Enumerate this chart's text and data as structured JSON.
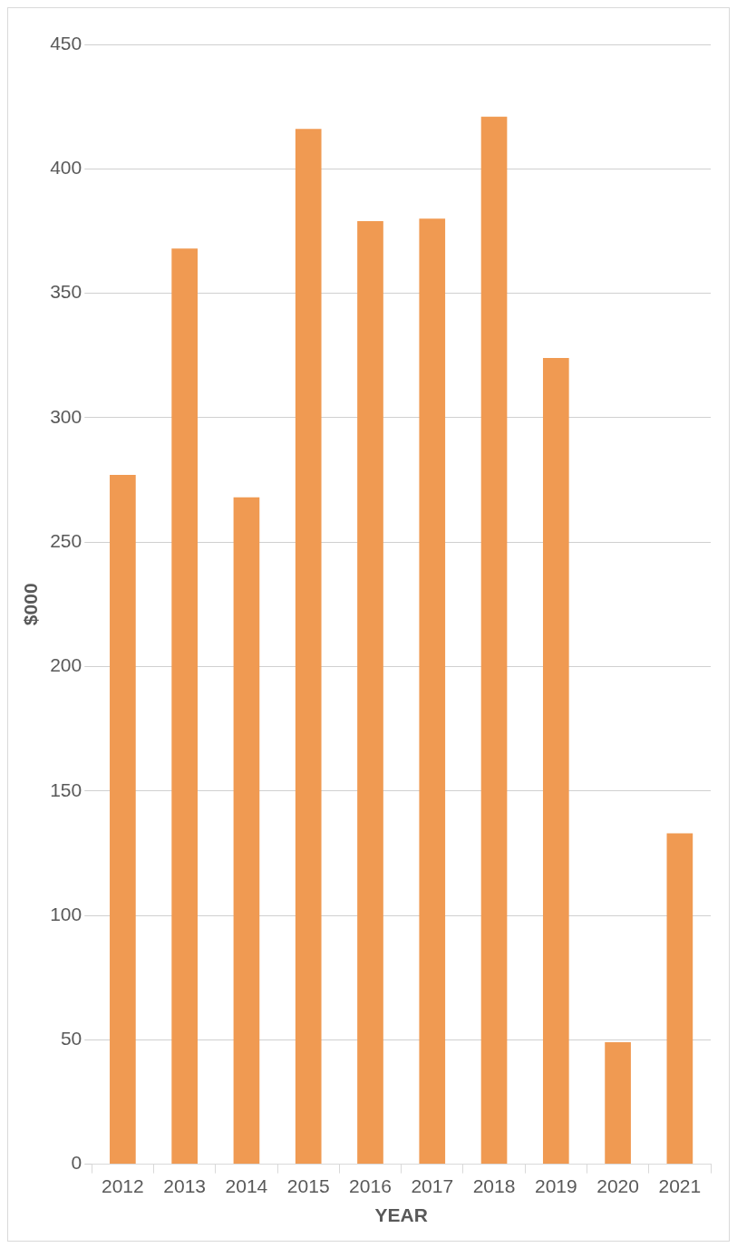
{
  "chart_data": {
    "type": "bar",
    "xlabel": "YEAR",
    "ylabel": "$000",
    "categories": [
      "2012",
      "2013",
      "2014",
      "2015",
      "2016",
      "2017",
      "2018",
      "2019",
      "2020",
      "2021"
    ],
    "values": [
      277,
      368,
      268,
      416,
      379,
      380,
      421,
      324,
      49,
      133
    ],
    "color": "#f09a52",
    "ylim": [
      0,
      450
    ],
    "yticks": [
      0,
      50,
      100,
      150,
      200,
      250,
      300,
      350,
      400,
      450
    ],
    "grid": "y"
  }
}
